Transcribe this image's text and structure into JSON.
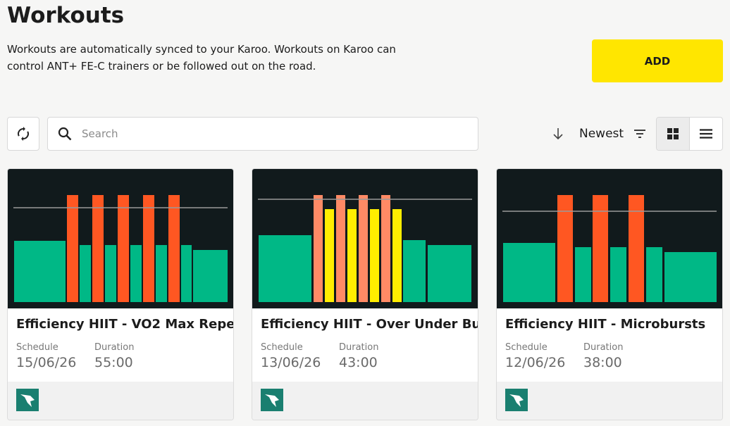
{
  "header": {
    "title": "Workouts",
    "description": "Workouts are automatically synced to your Karoo. Workouts on Karoo can control ANT+ FE-C trainers or be followed out on the road.",
    "add_button": "ADD"
  },
  "toolbar": {
    "search_placeholder": "Search",
    "sort": "Newest"
  },
  "workouts": [
    {
      "name": "Efficiency HIIT - VO2 Max Repe...",
      "schedule_label": "Schedule",
      "schedule": "15/06/26",
      "duration_label": "Duration",
      "duration": "55:00"
    },
    {
      "name": "Efficiency HIIT - Over Under Bu...",
      "schedule_label": "Schedule",
      "schedule": "13/06/26",
      "duration_label": "Duration",
      "duration": "43:00"
    },
    {
      "name": "Efficiency HIIT - Microbursts",
      "schedule_label": "Schedule",
      "schedule": "12/06/26",
      "duration_label": "Duration",
      "duration": "38:00"
    }
  ]
}
